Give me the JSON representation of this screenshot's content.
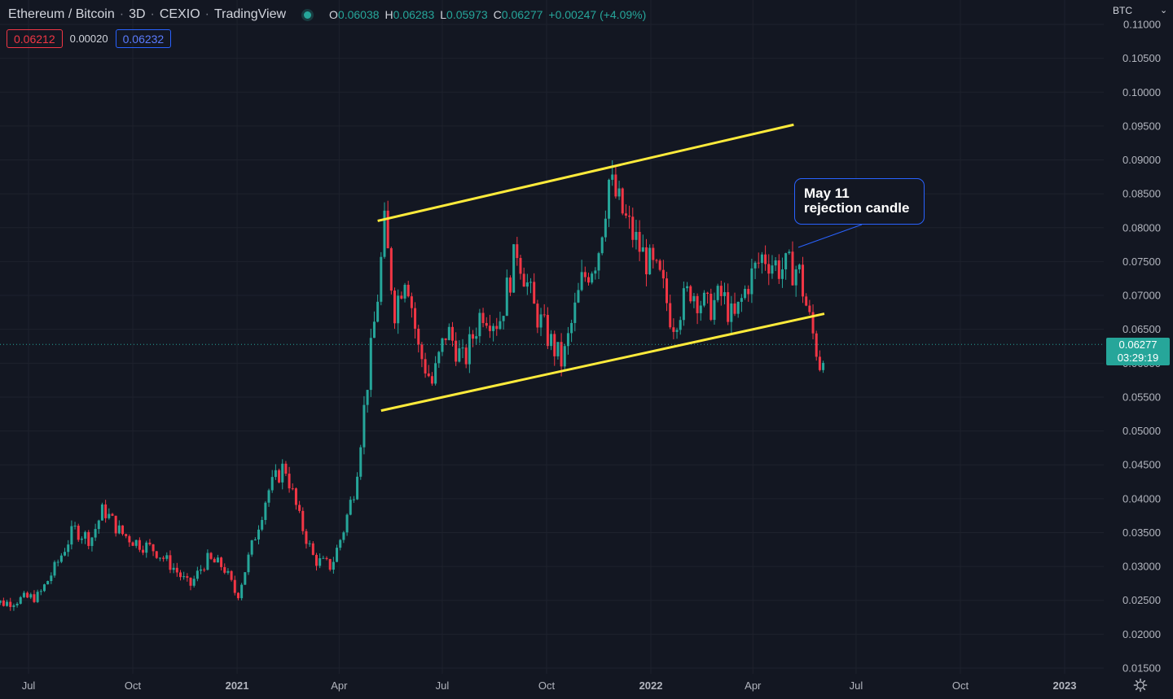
{
  "legend": {
    "symbol": "Ethereum / Bitcoin",
    "interval": "3D",
    "exchange": "CEXIO",
    "source": "TradingView",
    "status_color": "#26a69a",
    "o_label": "O",
    "o_value": "0.06038",
    "h_label": "H",
    "h_value": "0.06283",
    "l_label": "L",
    "l_value": "0.05973",
    "c_label": "C",
    "c_value": "0.06277",
    "change": "+0.00247 (+4.09%)"
  },
  "quote": {
    "bid": "0.06212",
    "spread": "0.00020",
    "ask": "0.06232"
  },
  "currency": {
    "label": "BTC",
    "icon": "chevron-down-icon"
  },
  "last_price": {
    "value": "0.06277",
    "countdown": "03:29:19"
  },
  "annotation": {
    "line1": "May 11",
    "line2": "rejection candle"
  },
  "settings_icon": "gear-icon",
  "colors": {
    "up": "#26a69a",
    "down": "#f23645",
    "trendline": "#ffeb3b",
    "accent": "#2962ff",
    "background": "#131722"
  },
  "chart_data": {
    "type": "candlestick",
    "x_range": [
      "2020-05-25",
      "2023-02-15"
    ],
    "y_range": [
      0.01375,
      0.1115
    ],
    "y_ticks": [
      "0.01500",
      "0.02000",
      "0.02500",
      "0.03000",
      "0.03500",
      "0.04000",
      "0.04500",
      "0.05000",
      "0.05500",
      "0.06000",
      "0.06500",
      "0.07000",
      "0.07500",
      "0.08000",
      "0.08500",
      "0.09000",
      "0.09500",
      "0.10000",
      "0.10500",
      "0.11000"
    ],
    "x_ticks": [
      {
        "date": "2020-07-01",
        "label": "Jul",
        "bold": false
      },
      {
        "date": "2020-10-01",
        "label": "Oct",
        "bold": false
      },
      {
        "date": "2021-01-01",
        "label": "2021",
        "bold": true
      },
      {
        "date": "2021-04-01",
        "label": "Apr",
        "bold": false
      },
      {
        "date": "2021-07-01",
        "label": "Jul",
        "bold": false
      },
      {
        "date": "2021-10-01",
        "label": "Oct",
        "bold": false
      },
      {
        "date": "2022-01-01",
        "label": "2022",
        "bold": true
      },
      {
        "date": "2022-04-01",
        "label": "Apr",
        "bold": false
      },
      {
        "date": "2022-07-01",
        "label": "Jul",
        "bold": false
      },
      {
        "date": "2022-10-01",
        "label": "Oct",
        "bold": false
      },
      {
        "date": "2023-01-01",
        "label": "2023",
        "bold": true
      }
    ],
    "grid": true,
    "last_price_line": 0.06277,
    "series": [
      {
        "date": "2020-05-25",
        "close": 0.025
      },
      {
        "date": "2020-06-10",
        "close": 0.0246
      },
      {
        "date": "2020-06-25",
        "close": 0.0252
      },
      {
        "date": "2020-07-10",
        "close": 0.0256
      },
      {
        "date": "2020-07-25",
        "close": 0.03
      },
      {
        "date": "2020-08-10",
        "close": 0.0355
      },
      {
        "date": "2020-08-25",
        "close": 0.034
      },
      {
        "date": "2020-09-05",
        "close": 0.0385
      },
      {
        "date": "2020-09-20",
        "close": 0.035
      },
      {
        "date": "2020-10-05",
        "close": 0.0335
      },
      {
        "date": "2020-10-20",
        "close": 0.0325
      },
      {
        "date": "2020-11-05",
        "close": 0.03
      },
      {
        "date": "2020-11-20",
        "close": 0.027
      },
      {
        "date": "2020-12-05",
        "close": 0.031
      },
      {
        "date": "2020-12-20",
        "close": 0.03
      },
      {
        "date": "2021-01-01",
        "close": 0.0255
      },
      {
        "date": "2021-01-15",
        "close": 0.0335
      },
      {
        "date": "2021-01-28",
        "close": 0.041
      },
      {
        "date": "2021-02-12",
        "close": 0.045
      },
      {
        "date": "2021-02-25",
        "close": 0.037
      },
      {
        "date": "2021-03-10",
        "close": 0.031
      },
      {
        "date": "2021-03-25",
        "close": 0.03
      },
      {
        "date": "2021-04-05",
        "close": 0.0355
      },
      {
        "date": "2021-04-15",
        "close": 0.042
      },
      {
        "date": "2021-04-25",
        "close": 0.056
      },
      {
        "date": "2021-05-05",
        "close": 0.07
      },
      {
        "date": "2021-05-11",
        "close": 0.08
      },
      {
        "date": "2021-05-20",
        "close": 0.068
      },
      {
        "date": "2021-05-30",
        "close": 0.074
      },
      {
        "date": "2021-06-10",
        "close": 0.062
      },
      {
        "date": "2021-06-22",
        "close": 0.057
      },
      {
        "date": "2021-07-05",
        "close": 0.065
      },
      {
        "date": "2021-07-20",
        "close": 0.06
      },
      {
        "date": "2021-08-05",
        "close": 0.068
      },
      {
        "date": "2021-08-20",
        "close": 0.066
      },
      {
        "date": "2021-09-05",
        "close": 0.077
      },
      {
        "date": "2021-09-20",
        "close": 0.068
      },
      {
        "date": "2021-10-05",
        "close": 0.063
      },
      {
        "date": "2021-10-15",
        "close": 0.06
      },
      {
        "date": "2021-11-01",
        "close": 0.072
      },
      {
        "date": "2021-11-15",
        "close": 0.076
      },
      {
        "date": "2021-11-25",
        "close": 0.087
      },
      {
        "date": "2021-12-10",
        "close": 0.081
      },
      {
        "date": "2021-12-25",
        "close": 0.076
      },
      {
        "date": "2022-01-10",
        "close": 0.072
      },
      {
        "date": "2022-01-20",
        "close": 0.066
      },
      {
        "date": "2022-02-05",
        "close": 0.071
      },
      {
        "date": "2022-02-20",
        "close": 0.068
      },
      {
        "date": "2022-03-05",
        "close": 0.07
      },
      {
        "date": "2022-03-15",
        "close": 0.066
      },
      {
        "date": "2022-03-28",
        "close": 0.072
      },
      {
        "date": "2022-04-10",
        "close": 0.076
      },
      {
        "date": "2022-04-25",
        "close": 0.074
      },
      {
        "date": "2022-05-11",
        "close": 0.074
      },
      {
        "date": "2022-05-20",
        "close": 0.067
      },
      {
        "date": "2022-05-30",
        "close": 0.06
      },
      {
        "date": "2022-06-03",
        "close": 0.0628
      }
    ],
    "trendlines": [
      {
        "name": "upper-channel-line",
        "x1": "2021-05-05",
        "y1": 0.081,
        "x2": "2022-05-07",
        "y2": 0.0952
      },
      {
        "name": "lower-channel-line",
        "x1": "2021-05-08",
        "y1": 0.053,
        "x2": "2022-06-03",
        "y2": 0.0673
      }
    ]
  }
}
